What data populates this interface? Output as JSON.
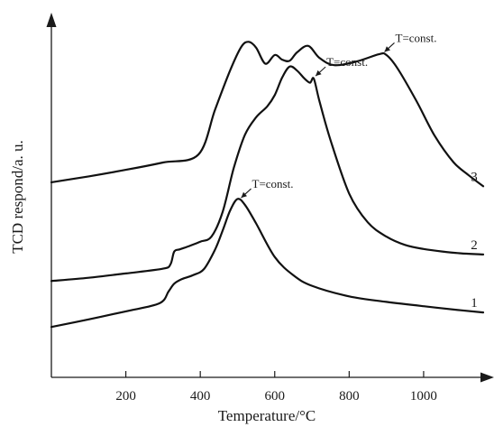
{
  "chart_data": {
    "type": "line",
    "xlabel": "Temperature/°C",
    "ylabel": "TCD respond/a. u.",
    "xlim": [
      0,
      1160
    ],
    "ylim": [
      0,
      100
    ],
    "x_ticks": [
      200,
      400,
      600,
      800,
      1000
    ],
    "x_tick_labels": [
      "200",
      "400",
      "600",
      "800",
      "1000"
    ],
    "y_ticks_shown": false,
    "grid": false,
    "series": [
      {
        "name": "1",
        "points": [
          [
            0,
            13.8
          ],
          [
            100,
            15.9
          ],
          [
            200,
            18.1
          ],
          [
            290,
            20.3
          ],
          [
            315,
            23.6
          ],
          [
            330,
            25.7
          ],
          [
            350,
            26.9
          ],
          [
            380,
            28.0
          ],
          [
            410,
            29.7
          ],
          [
            440,
            35.1
          ],
          [
            460,
            40.2
          ],
          [
            480,
            45.7
          ],
          [
            500,
            48.9
          ],
          [
            520,
            47.3
          ],
          [
            550,
            42.2
          ],
          [
            600,
            33.0
          ],
          [
            650,
            28.0
          ],
          [
            700,
            25.1
          ],
          [
            800,
            22.2
          ],
          [
            900,
            20.7
          ],
          [
            1000,
            19.5
          ],
          [
            1100,
            18.4
          ],
          [
            1160,
            17.8
          ]
        ],
        "annotation": {
          "text": "T=const.",
          "x": 505
        }
      },
      {
        "name": "2",
        "points": [
          [
            0,
            26.4
          ],
          [
            100,
            27.3
          ],
          [
            200,
            28.5
          ],
          [
            300,
            29.8
          ],
          [
            320,
            31.0
          ],
          [
            330,
            34.5
          ],
          [
            345,
            35.1
          ],
          [
            370,
            36.0
          ],
          [
            400,
            37.2
          ],
          [
            430,
            38.6
          ],
          [
            460,
            45.3
          ],
          [
            490,
            57.4
          ],
          [
            520,
            66.5
          ],
          [
            550,
            71.3
          ],
          [
            580,
            74.3
          ],
          [
            600,
            77.4
          ],
          [
            620,
            82.2
          ],
          [
            640,
            85.2
          ],
          [
            660,
            84.1
          ],
          [
            680,
            81.9
          ],
          [
            695,
            80.8
          ],
          [
            705,
            81.9
          ],
          [
            720,
            75.8
          ],
          [
            750,
            65.0
          ],
          [
            800,
            50.4
          ],
          [
            850,
            42.5
          ],
          [
            900,
            38.6
          ],
          [
            950,
            36.3
          ],
          [
            1000,
            35.2
          ],
          [
            1050,
            34.5
          ],
          [
            1100,
            34.0
          ],
          [
            1160,
            33.7
          ]
        ],
        "annotation": {
          "text": "T=const.",
          "x": 705
        }
      },
      {
        "name": "3",
        "points": [
          [
            0,
            53.5
          ],
          [
            100,
            55.1
          ],
          [
            200,
            56.9
          ],
          [
            300,
            58.9
          ],
          [
            395,
            61.1
          ],
          [
            440,
            73.5
          ],
          [
            480,
            84.1
          ],
          [
            510,
            90.6
          ],
          [
            530,
            92.0
          ],
          [
            550,
            90.4
          ],
          [
            575,
            86.0
          ],
          [
            600,
            88.4
          ],
          [
            620,
            87.1
          ],
          [
            640,
            86.8
          ],
          [
            660,
            89.1
          ],
          [
            690,
            90.9
          ],
          [
            720,
            87.6
          ],
          [
            760,
            85.6
          ],
          [
            820,
            86.6
          ],
          [
            880,
            88.6
          ],
          [
            900,
            88.4
          ],
          [
            930,
            84.7
          ],
          [
            980,
            75.9
          ],
          [
            1030,
            66.2
          ],
          [
            1080,
            59.0
          ],
          [
            1120,
            55.5
          ],
          [
            1160,
            52.4
          ]
        ],
        "annotation": {
          "text": "T=const.",
          "x": 890
        }
      }
    ]
  }
}
